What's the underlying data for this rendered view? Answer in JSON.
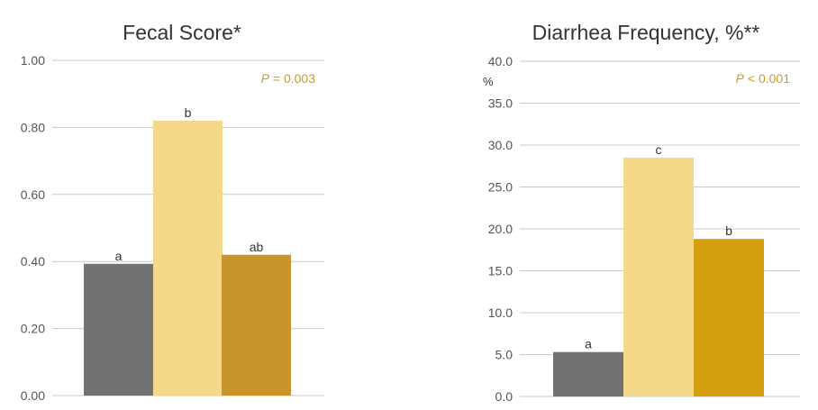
{
  "chart_data": [
    {
      "type": "bar",
      "title": "Fecal Score*",
      "ylabel": "",
      "ylim": [
        0,
        1.0
      ],
      "yticks": [
        "0.00",
        "0.20",
        "0.40",
        "0.60",
        "0.80",
        "1.00"
      ],
      "categories": [
        "",
        "",
        ""
      ],
      "values": [
        0.393,
        0.82,
        0.42
      ],
      "labels": [
        "a",
        "b",
        "ab"
      ],
      "colors": [
        "#727272",
        "#f5d98b",
        "#c8942c"
      ],
      "annotation": {
        "p": "P",
        "rest": " = 0.003",
        "color": "#c89a2a"
      },
      "grid": true
    },
    {
      "type": "bar",
      "title": "Diarrhea Frequency, %**",
      "ylabel": "%",
      "ylim": [
        0,
        40.0
      ],
      "yticks": [
        "0.0",
        "5.0",
        "10.0",
        "15.0",
        "20.0",
        "25.0",
        "30.0",
        "35.0",
        "40.0"
      ],
      "categories": [
        "",
        "",
        ""
      ],
      "values": [
        5.3,
        28.5,
        18.8
      ],
      "labels": [
        "a",
        "c",
        "b"
      ],
      "colors": [
        "#727272",
        "#f5d98b",
        "#d49e0e"
      ],
      "annotation": {
        "p": "P",
        "rest": " < 0.001",
        "color": "#c89a2a"
      },
      "grid": true
    }
  ]
}
